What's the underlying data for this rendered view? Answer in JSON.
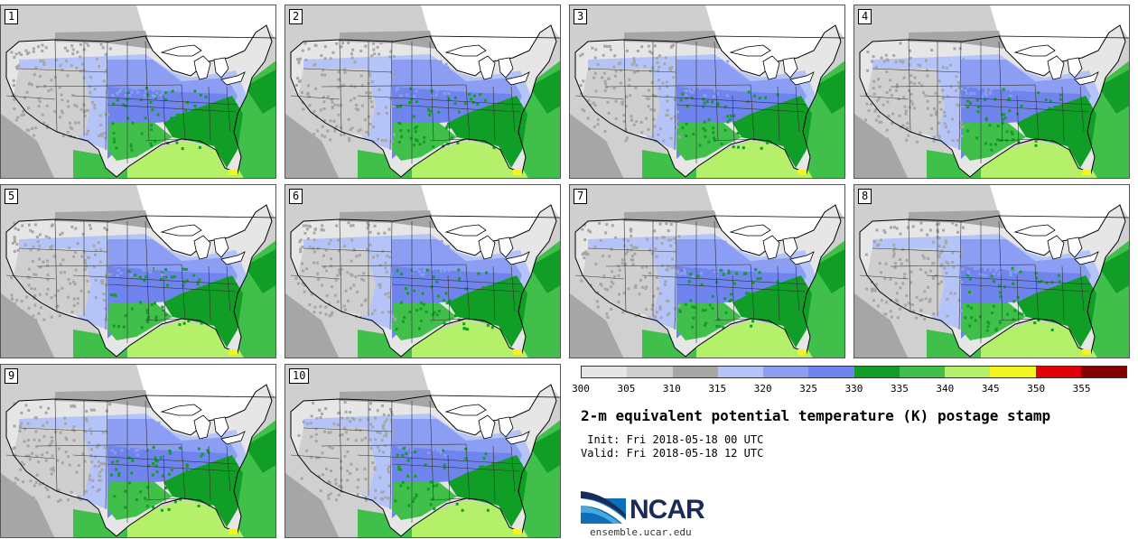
{
  "title": "2-m equivalent potential temperature (K) postage stamp",
  "init_time": " Init: Fri 2018-05-18 00 UTC",
  "valid_time": "Valid: Fri 2018-05-18 12 UTC",
  "members": [
    "1",
    "2",
    "3",
    "4",
    "5",
    "6",
    "7",
    "8",
    "9",
    "10"
  ],
  "colorbar": {
    "ticks": [
      "300",
      "305",
      "310",
      "315",
      "320",
      "325",
      "330",
      "335",
      "340",
      "345",
      "350",
      "355"
    ],
    "colors": [
      "#e6e6e6",
      "#cfcfcf",
      "#a6a6a6",
      "#b4c4f8",
      "#8c9ef4",
      "#7084ee",
      "#109e27",
      "#40c04a",
      "#b4f06a",
      "#f4f51f",
      "#e10008",
      "#820000"
    ]
  },
  "logo": {
    "text": "NCAR",
    "url": "ensemble.ucar.edu"
  },
  "colors": {
    "water_gray": "#c8c8c8",
    "coast": "#000000",
    "land_none": "#ffffff"
  }
}
